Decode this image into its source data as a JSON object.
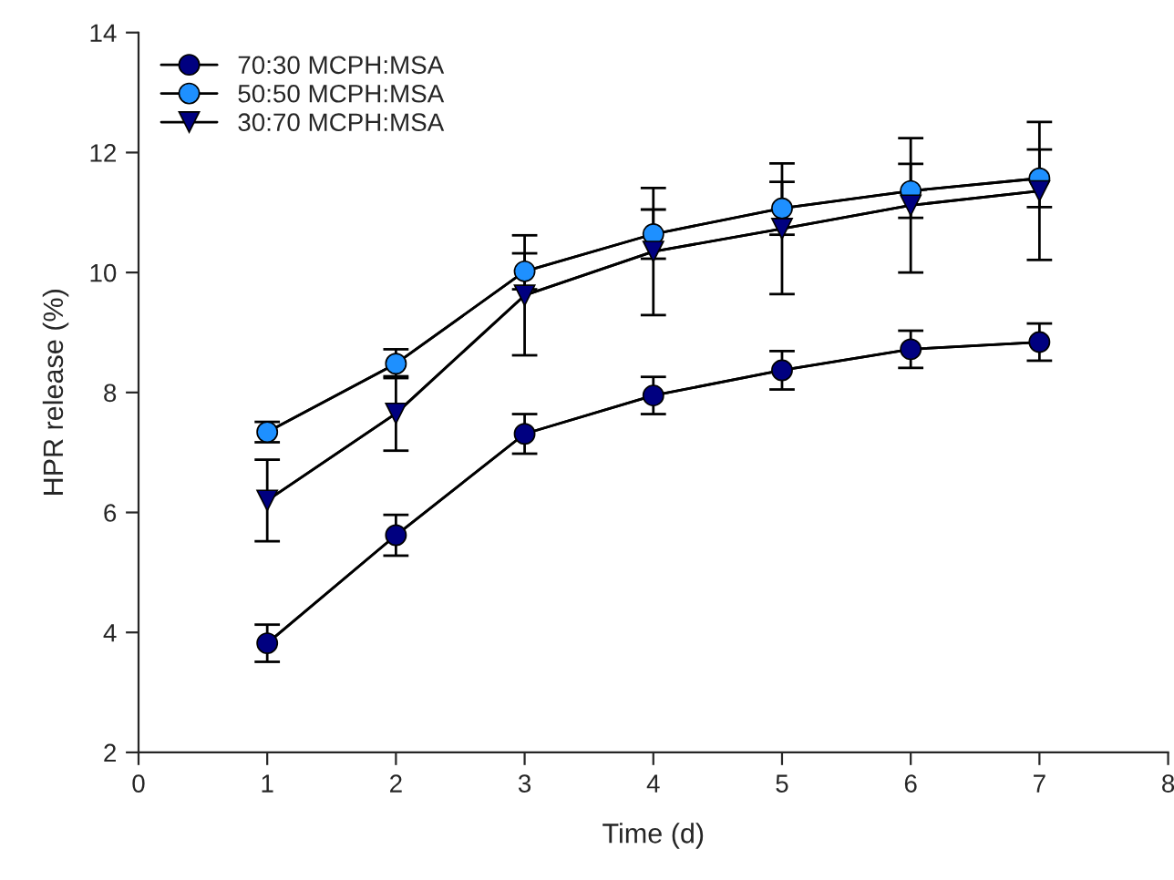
{
  "chart_data": {
    "type": "line",
    "xlabel": "Time (d)",
    "ylabel": "HPR release (%)",
    "x": [
      1,
      2,
      3,
      4,
      5,
      6,
      7
    ],
    "xlim": [
      0,
      8
    ],
    "xticks": [
      0,
      1,
      2,
      3,
      4,
      5,
      6,
      7,
      8
    ],
    "ylim": [
      2,
      14
    ],
    "yticks": [
      2,
      4,
      6,
      8,
      10,
      12,
      14
    ],
    "grid": false,
    "legend": "top left",
    "series": [
      {
        "name": "70:30 MCPH:MSA",
        "color": "#000080",
        "marker": "circle",
        "values": [
          3.82,
          5.62,
          7.31,
          7.95,
          8.37,
          8.72,
          8.84
        ],
        "errors": [
          0.31,
          0.34,
          0.33,
          0.31,
          0.32,
          0.31,
          0.31
        ]
      },
      {
        "name": "50:50 MCPH:MSA",
        "color": "#1e90ff",
        "marker": "circle",
        "values": [
          7.34,
          8.48,
          10.02,
          10.64,
          11.07,
          11.36,
          11.57
        ],
        "errors": [
          0.17,
          0.24,
          0.3,
          0.41,
          0.44,
          0.45,
          0.48
        ]
      },
      {
        "name": "30:70 MCPH:MSA",
        "color": "#000080",
        "marker": "triangle",
        "values": [
          6.2,
          7.65,
          9.62,
          10.35,
          10.73,
          11.12,
          11.36
        ],
        "errors": [
          0.68,
          0.62,
          1.0,
          1.06,
          1.09,
          1.12,
          1.15
        ]
      }
    ]
  }
}
